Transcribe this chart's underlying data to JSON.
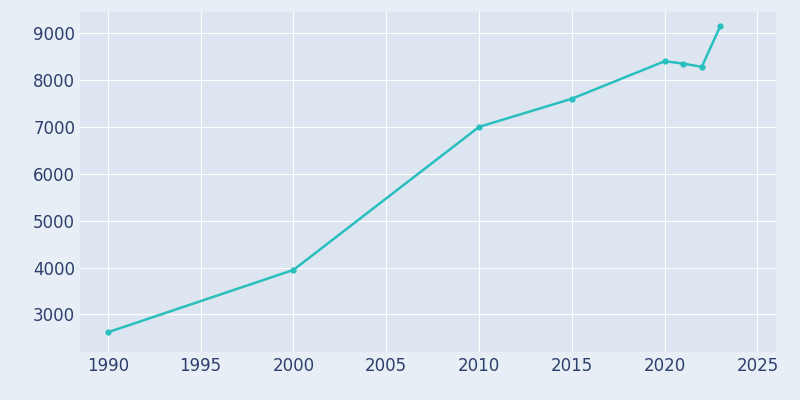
{
  "years": [
    1990,
    2000,
    2010,
    2015,
    2020,
    2021,
    2022,
    2023
  ],
  "population": [
    2620,
    3950,
    7000,
    7600,
    8400,
    8350,
    8280,
    9150
  ],
  "line_color": "#2abfbf",
  "bg_color": "#e8eef5",
  "plot_bg_color": "#dde6f0",
  "tick_color": "#2c3e6b",
  "grid_color": "#ffffff",
  "xlim": [
    1988.5,
    2026
  ],
  "ylim": [
    2200,
    9450
  ],
  "xticks": [
    1990,
    1995,
    2000,
    2005,
    2010,
    2015,
    2020,
    2025
  ],
  "yticks": [
    3000,
    4000,
    5000,
    6000,
    7000,
    8000,
    9000
  ],
  "line_width": 1.8,
  "marker": "o",
  "marker_size": 3.5,
  "tick_labelsize": 12
}
